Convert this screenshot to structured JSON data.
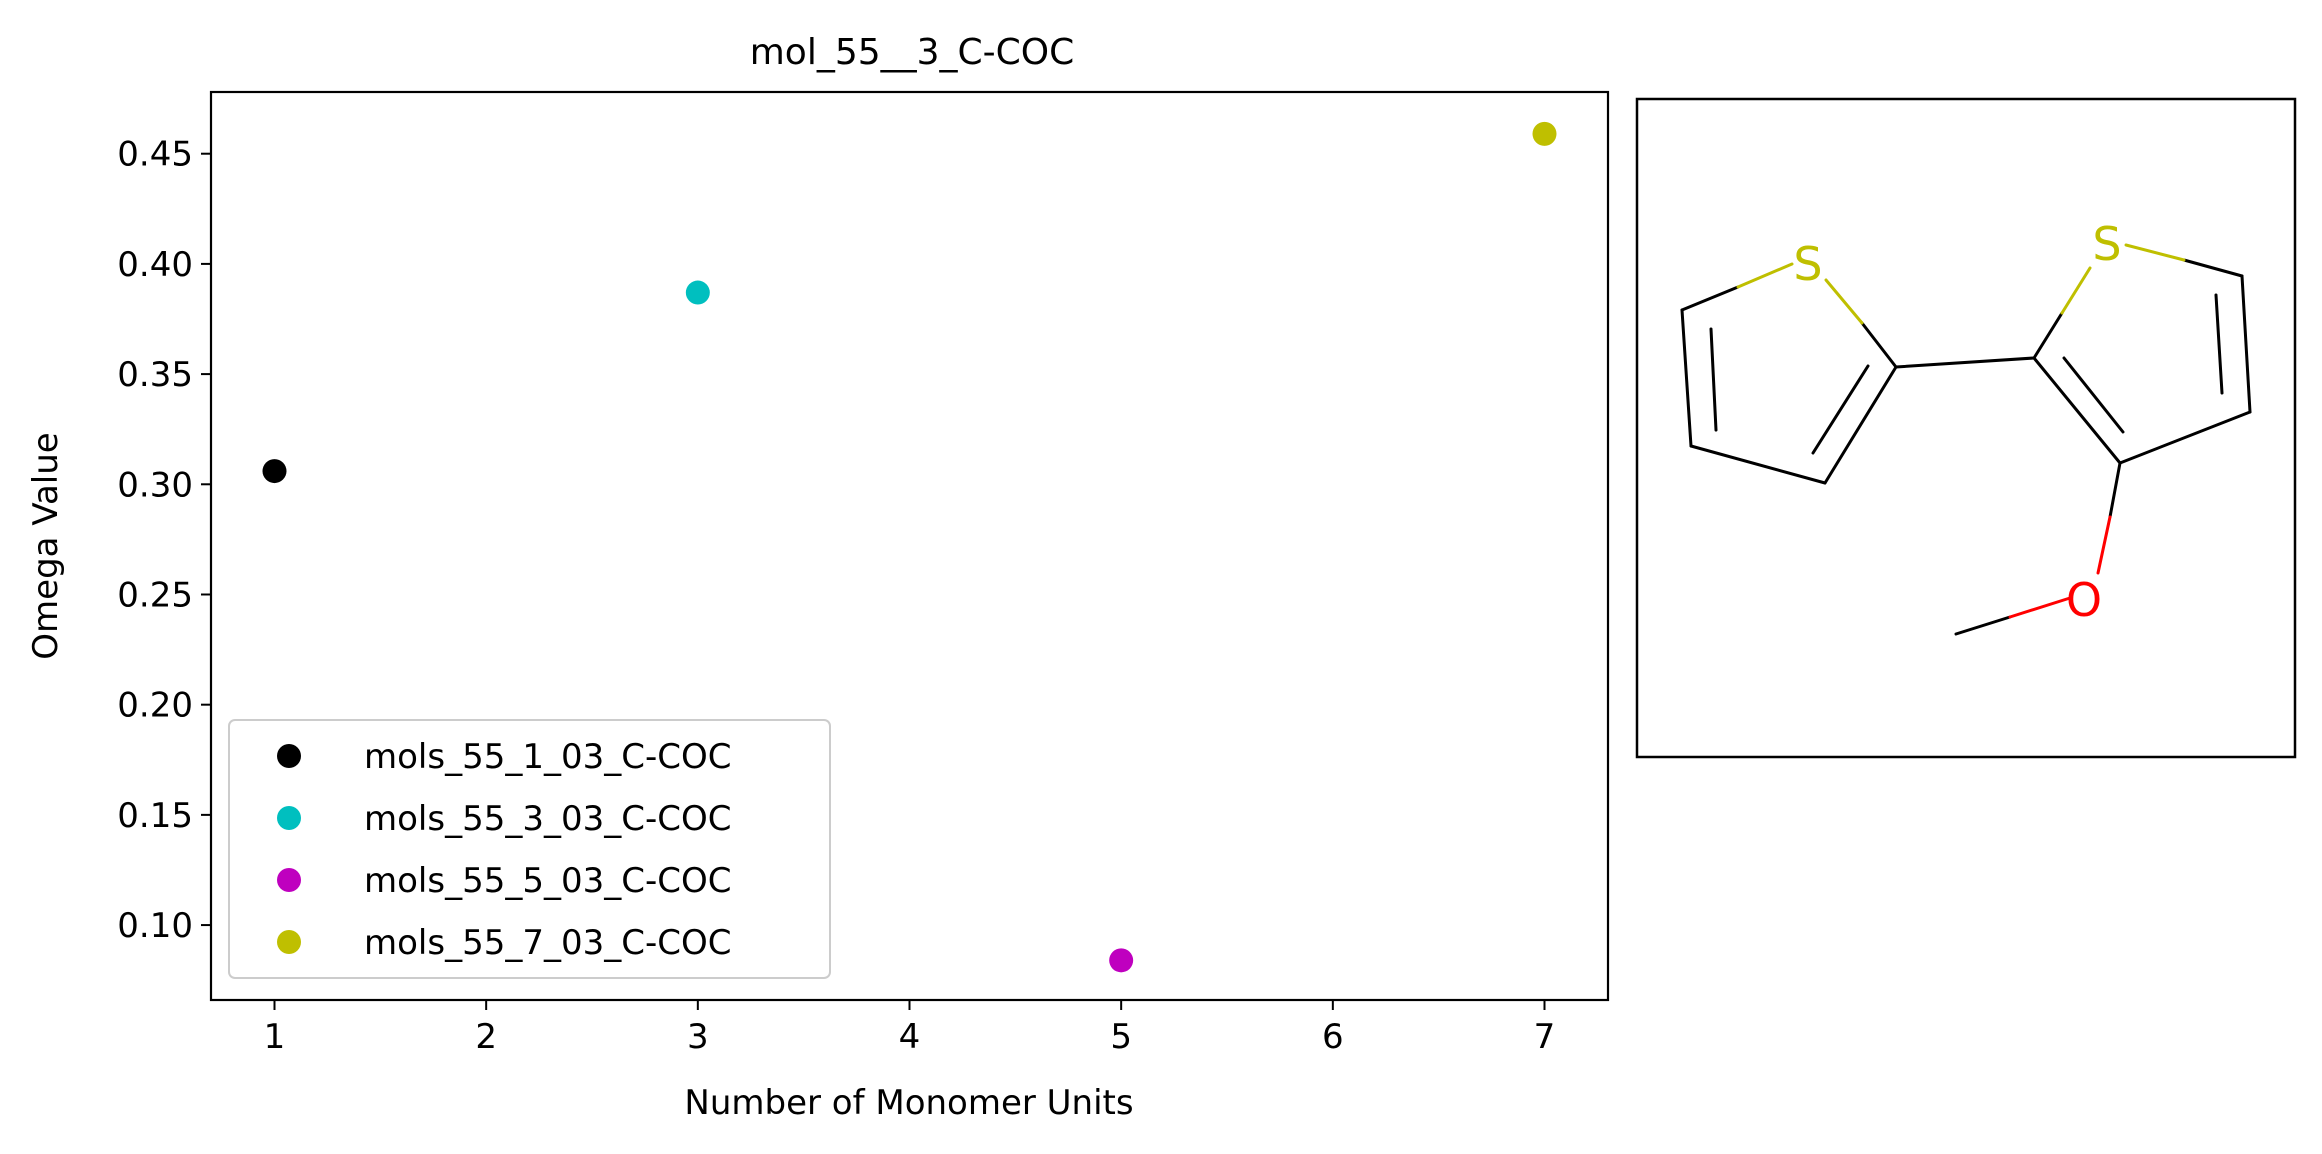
{
  "chart_data": {
    "type": "scatter",
    "title": "mol_55__3_C-COC",
    "xlabel": "Number of Monomer Units",
    "ylabel": "Omega Value",
    "xlim": [
      0.7,
      7.3
    ],
    "ylim": [
      0.066,
      0.478
    ],
    "xticks": [
      1,
      2,
      3,
      4,
      5,
      6,
      7
    ],
    "xtick_labels": [
      "1",
      "2",
      "3",
      "4",
      "5",
      "6",
      "7"
    ],
    "yticks": [
      0.1,
      0.15,
      0.2,
      0.25,
      0.3,
      0.35,
      0.4,
      0.45
    ],
    "ytick_labels": [
      "0.10",
      "0.15",
      "0.20",
      "0.25",
      "0.30",
      "0.35",
      "0.40",
      "0.45"
    ],
    "grid": false,
    "legend_position": "lower-left",
    "series": [
      {
        "name": "mols_55_1_03_C-COC",
        "x": [
          1
        ],
        "y": [
          0.306
        ],
        "color": "#000000"
      },
      {
        "name": "mols_55_3_03_C-COC",
        "x": [
          3
        ],
        "y": [
          0.387
        ],
        "color": "#00bfbf"
      },
      {
        "name": "mols_55_5_03_C-COC",
        "x": [
          5
        ],
        "y": [
          0.084
        ],
        "color": "#bf00bf"
      },
      {
        "name": "mols_55_7_03_C-COC",
        "x": [
          7
        ],
        "y": [
          0.459
        ],
        "color": "#bfbf00"
      }
    ]
  },
  "structure": {
    "atom_labels": [
      {
        "text": "S",
        "color": "#bfbf00"
      },
      {
        "text": "S",
        "color": "#bfbf00"
      },
      {
        "text": "O",
        "color": "#ff0000"
      }
    ],
    "bond_color": "#000000"
  }
}
